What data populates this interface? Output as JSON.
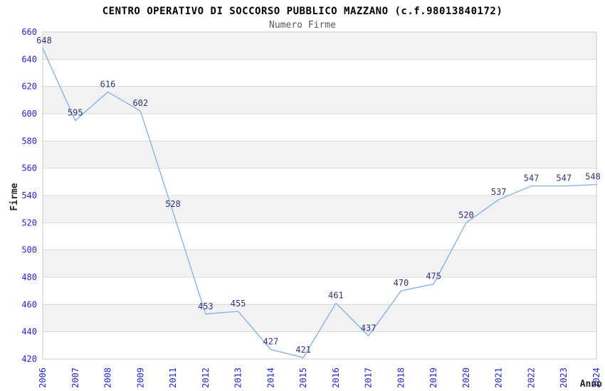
{
  "chart_data": {
    "type": "line",
    "title": "CENTRO OPERATIVO DI SOCCORSO PUBBLICO MAZZANO (c.f.98013840172)",
    "subtitle": "Numero Firme",
    "xlabel": "Anno",
    "ylabel": "Firme",
    "categories": [
      "2006",
      "2007",
      "2008",
      "2009",
      "2011",
      "2012",
      "2013",
      "2014",
      "2015",
      "2016",
      "2017",
      "2018",
      "2019",
      "2020",
      "2021",
      "2022",
      "2023",
      "2024"
    ],
    "series": [
      {
        "name": "Numero Firme",
        "values": [
          648,
          595,
          616,
          602,
          528,
          453,
          455,
          427,
          421,
          461,
          437,
          470,
          475,
          520,
          537,
          547,
          547,
          548
        ]
      }
    ],
    "ylim": [
      420,
      660
    ],
    "ytick_step": 20,
    "grid": true,
    "legend_position": "none",
    "band_pattern": "alternating horizontal stripes, gray band from 640-660 downward every 40 units",
    "colors": {
      "line": "#86b3e8",
      "tick_label": "#2525cc",
      "data_label": "#32327a",
      "band": "#f2f2f2",
      "gridline": "#d9d9d9",
      "plot_border": "#c9c9c9",
      "title": "#000000",
      "subtitle": "#595959",
      "axis_title": "#262626",
      "background": "#ffffff"
    }
  }
}
